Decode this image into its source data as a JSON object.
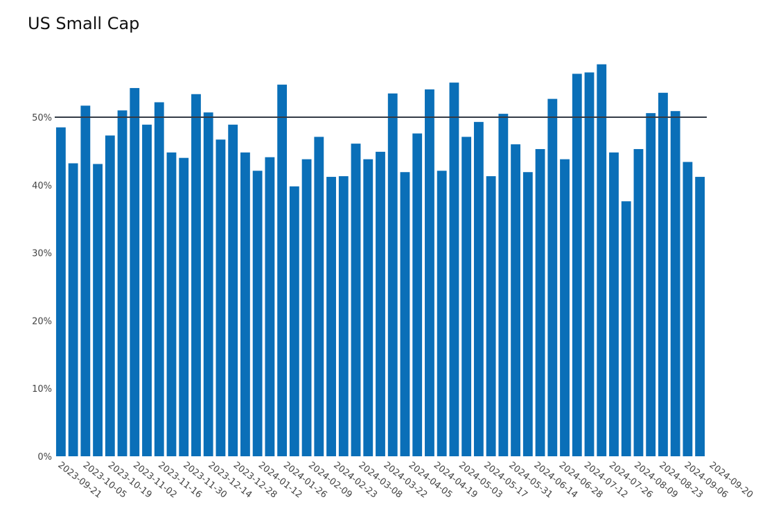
{
  "chart_data": {
    "type": "bar",
    "title": "US Small Cap",
    "xlabel": "",
    "ylabel": "",
    "ylim": [
      0,
      60
    ],
    "yticks": [
      0,
      10,
      20,
      30,
      40,
      50
    ],
    "ytick_labels": [
      "0%",
      "10%",
      "20%",
      "30%",
      "40%",
      "50%"
    ],
    "xtick_labels": [
      "2023-09-21",
      "2023-10-05",
      "2023-10-19",
      "2023-11-02",
      "2023-11-16",
      "2023-11-30",
      "2023-12-14",
      "2023-12-28",
      "2024-01-12",
      "2024-01-26",
      "2024-02-09",
      "2024-02-23",
      "2024-03-08",
      "2024-03-22",
      "2024-04-05",
      "2024-04-19",
      "2024-05-03",
      "2024-05-17",
      "2024-05-31",
      "2024-06-14",
      "2024-06-28",
      "2024-07-12",
      "2024-07-26",
      "2024-08-09",
      "2024-08-23",
      "2024-09-06",
      "2024-09-20"
    ],
    "reference_line": 50,
    "bar_color": "#0a6fb8",
    "line_color": "#333a45",
    "values": [
      48.5,
      43.2,
      51.7,
      43.1,
      47.3,
      51.0,
      54.3,
      48.9,
      52.2,
      44.8,
      44.0,
      53.4,
      50.7,
      46.7,
      48.9,
      44.8,
      42.1,
      44.1,
      54.8,
      39.8,
      43.8,
      47.1,
      41.2,
      41.3,
      46.1,
      43.8,
      44.9,
      53.5,
      41.9,
      47.6,
      54.1,
      42.1,
      55.1,
      47.1,
      49.3,
      41.3,
      50.5,
      46.0,
      41.9,
      45.3,
      52.7,
      43.8,
      56.4,
      56.6,
      57.8,
      44.8,
      37.6,
      45.3,
      50.6,
      53.6,
      50.9,
      43.4,
      41.2
    ]
  }
}
